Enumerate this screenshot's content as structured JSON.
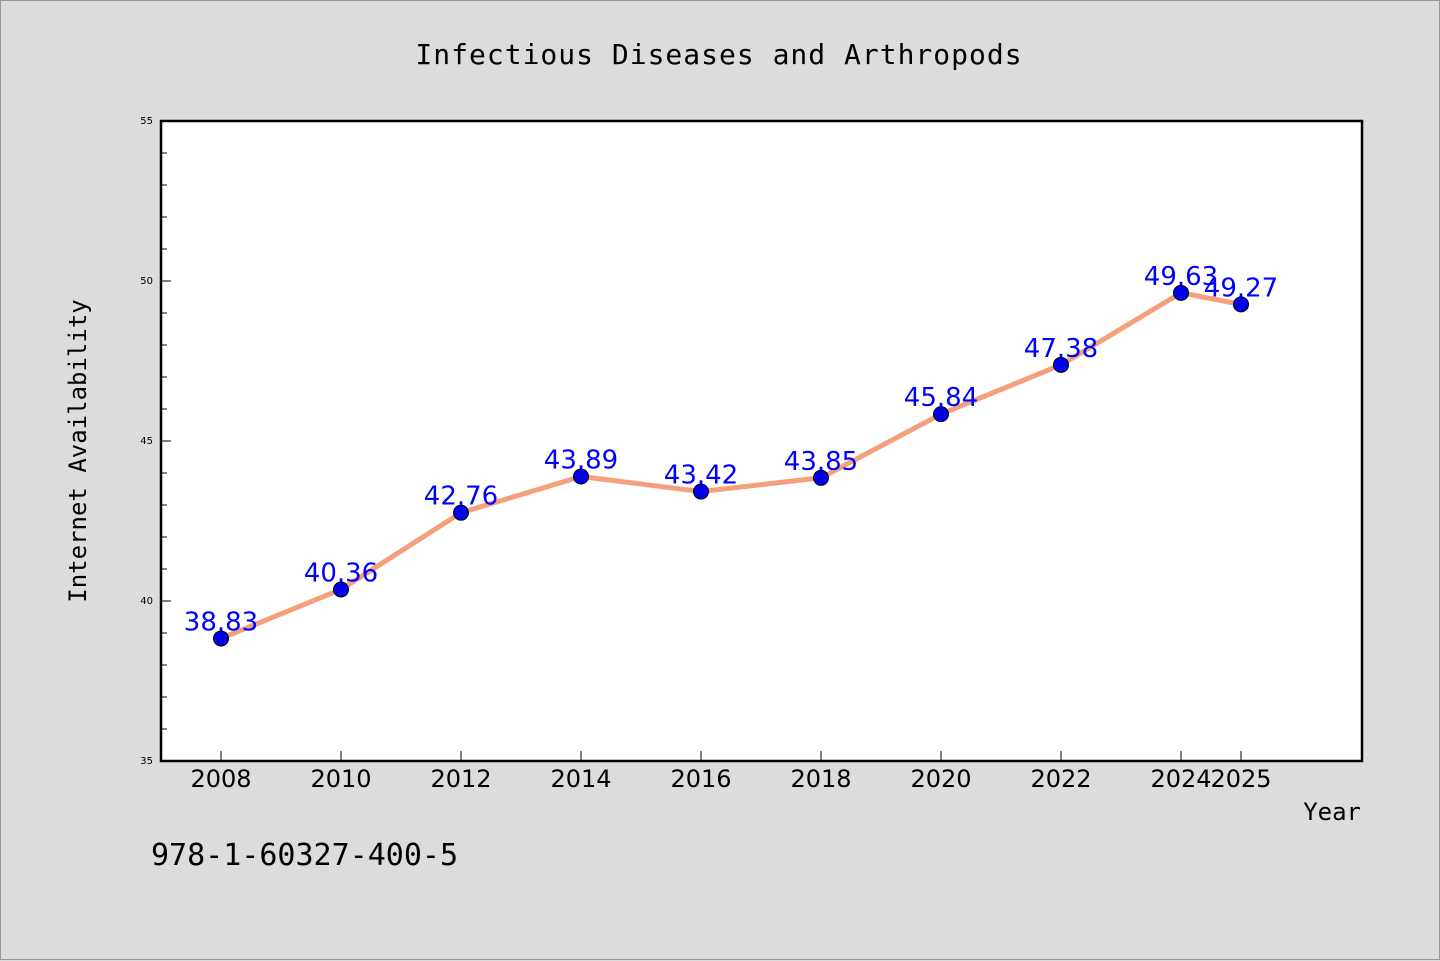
{
  "chart_data": {
    "type": "line",
    "title": "Infectious Diseases and Arthropods",
    "xlabel": "Year",
    "ylabel": "Internet Availability",
    "x": [
      2008,
      2010,
      2012,
      2014,
      2016,
      2018,
      2020,
      2022,
      2024,
      2025
    ],
    "x_tick_labels": [
      "2008",
      "2010",
      "2012",
      "2014",
      "2016",
      "2018",
      "2020",
      "2022",
      "2024",
      "2025"
    ],
    "series": [
      {
        "values": [
          38.83,
          40.36,
          42.76,
          43.89,
          43.42,
          43.85,
          45.84,
          47.38,
          49.63,
          49.27
        ],
        "labels": [
          "38.83",
          "40.36",
          "42.76",
          "43.89",
          "43.42",
          "43.85",
          "45.84",
          "47.38",
          "49.63",
          "49.27"
        ],
        "line_color": "#f4a07c",
        "marker_color": "#0000ee"
      }
    ],
    "ylim": [
      35,
      55
    ],
    "y_ticks": [
      35,
      40,
      45,
      50,
      55
    ],
    "y_tick_labels": [
      "35",
      "40",
      "45",
      "50",
      "55"
    ],
    "grid": false,
    "data_label_color": "#0000ff"
  },
  "footer": {
    "isbn": "978-1-60327-400-5"
  }
}
